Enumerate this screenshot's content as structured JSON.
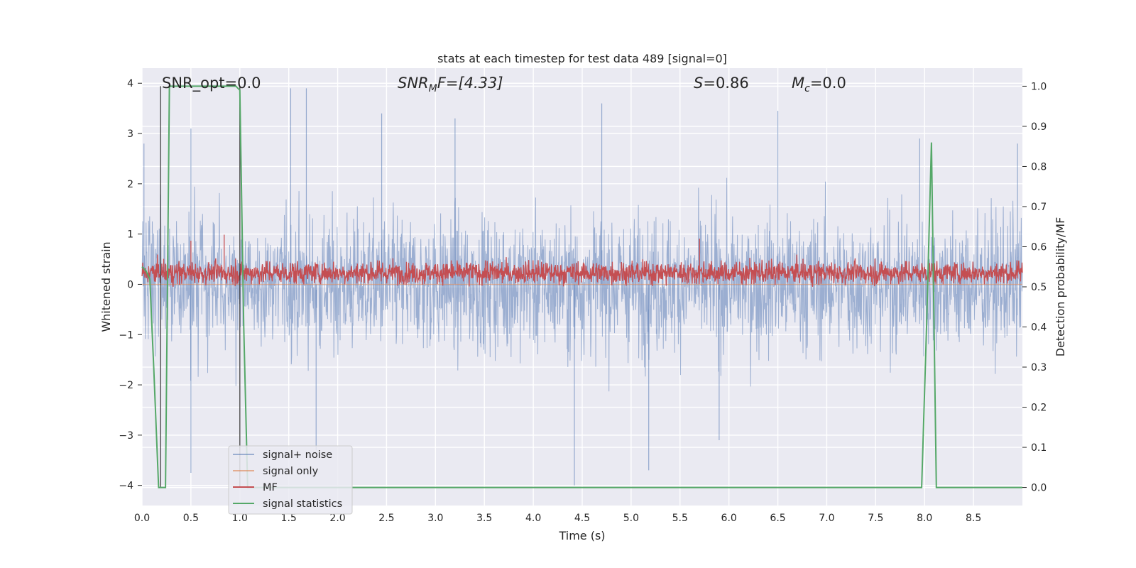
{
  "chart_data": {
    "type": "line",
    "title": "stats at each timestep for test data 489 [signal=0]",
    "xlabel": "Time (s)",
    "ylabel": "Whitened strain",
    "y2label": "Detection probability/MF",
    "xlim": [
      0.0,
      9.0
    ],
    "ylim": [
      -4.4,
      4.3
    ],
    "y2lim": [
      -0.045,
      1.045
    ],
    "x_ticks": [
      "0.0",
      "0.5",
      "1.0",
      "1.5",
      "2.0",
      "2.5",
      "3.0",
      "3.5",
      "4.0",
      "4.5",
      "5.0",
      "5.5",
      "6.0",
      "6.5",
      "7.0",
      "7.5",
      "8.0",
      "8.5"
    ],
    "y_ticks": [
      "−4",
      "−3",
      "−2",
      "−1",
      "0",
      "1",
      "2",
      "3",
      "4"
    ],
    "y2_ticks": [
      "0.0",
      "0.1",
      "0.2",
      "0.3",
      "0.4",
      "0.5",
      "0.6",
      "0.7",
      "0.8",
      "0.9",
      "1.0"
    ],
    "grid": true,
    "legend_position": "lower-left",
    "annotations": {
      "snr_opt": "SNR_opt=0.0",
      "snr_mf_base": "SNR",
      "snr_mf_sub": "M",
      "snr_mf_rest": "F=[4.33]",
      "s_var": "S",
      "s_rest": "=0.86",
      "mc_var": "M",
      "mc_sub": "c",
      "mc_rest": "=0.0"
    },
    "series": [
      {
        "name": "signal+ noise",
        "color": "#4c72b0",
        "description_of_values": "whitened noise, approx amplitude -2.5..3",
        "peaks": [
          [
            0.02,
            2.8
          ],
          [
            0.5,
            3.1
          ],
          [
            1.52,
            3.9
          ],
          [
            1.68,
            3.9
          ],
          [
            2.45,
            3.4
          ],
          [
            3.2,
            3.3
          ],
          [
            4.7,
            3.6
          ],
          [
            6.5,
            3.45
          ],
          [
            7.95,
            2.9
          ],
          [
            8.95,
            2.8
          ],
          [
            0.5,
            -3.75
          ],
          [
            1.78,
            -3.3
          ],
          [
            4.42,
            -4.0
          ],
          [
            5.18,
            -3.7
          ],
          [
            5.9,
            -3.1
          ]
        ]
      },
      {
        "name": "signal only",
        "color": "#dd8452",
        "x": [
          0.0,
          9.0
        ],
        "y": [
          0.0,
          0.0
        ]
      },
      {
        "name": "MF",
        "color": "#c44e52",
        "description_of_values": "matched filter output on right axis, approx 0.5..0.6",
        "axis": "right"
      },
      {
        "name": "signal statistics",
        "color": "#55a868",
        "axis": "right",
        "x": [
          0.0,
          0.04,
          0.08,
          0.12,
          0.17,
          0.2,
          0.24,
          0.28,
          0.4,
          0.6,
          0.8,
          0.96,
          1.0,
          1.04,
          1.08,
          1.2,
          2.0,
          3.0,
          4.0,
          5.0,
          6.0,
          7.0,
          7.97,
          8.02,
          8.07,
          8.12,
          8.2,
          9.0
        ],
        "y": [
          0.55,
          0.54,
          0.52,
          0.3,
          0.0,
          0.0,
          0.0,
          1.0,
          1.0,
          1.0,
          1.0,
          1.0,
          0.99,
          0.4,
          0.0,
          0.0,
          0.0,
          0.0,
          0.0,
          0.0,
          0.0,
          0.0,
          0.0,
          0.4,
          0.86,
          0.0,
          0.0,
          0.0
        ]
      }
    ],
    "markers": [
      {
        "x": 0.19,
        "y_right_top": 1.0,
        "color": "#333333"
      },
      {
        "x": 1.0,
        "y_right_top": 1.0,
        "color": "#333333"
      }
    ]
  }
}
